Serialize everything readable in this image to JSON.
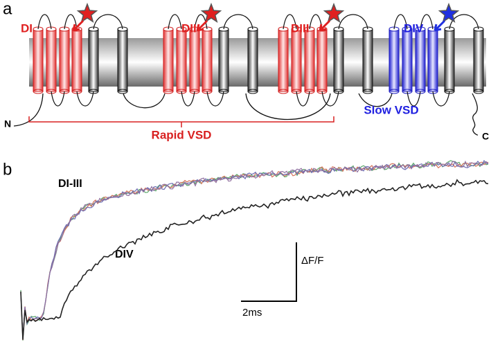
{
  "panel_a": {
    "label": "a",
    "domains": [
      "DI",
      "DII",
      "DIII",
      "DIV"
    ],
    "n_terminus": "N",
    "c_terminus": "C",
    "rapid_label": "Rapid VSD",
    "slow_label": "Slow VSD"
  },
  "panel_b": {
    "label": "b",
    "traces_label": "DI-III",
    "slow_trace_label": "DIV",
    "y_scale_label": "ΔF/F",
    "x_scale_label": "2ms"
  }
}
